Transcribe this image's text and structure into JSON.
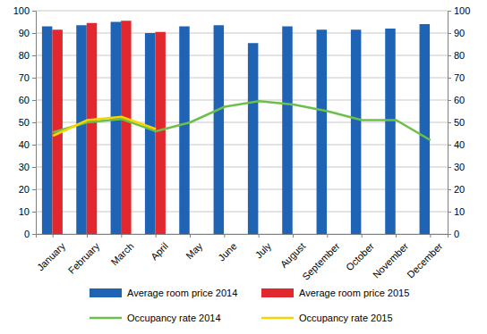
{
  "chart_data": {
    "type": "bar",
    "categories": [
      "January",
      "February",
      "March",
      "April",
      "May",
      "June",
      "July",
      "August",
      "September",
      "October",
      "November",
      "December"
    ],
    "series": [
      {
        "name": "Average room price 2014",
        "type": "bar",
        "color": "#1f64b4",
        "values": [
          93,
          93.5,
          95,
          90,
          93,
          93.5,
          85.5,
          93,
          91.5,
          91.5,
          92,
          94
        ]
      },
      {
        "name": "Average room price 2015",
        "type": "bar",
        "color": "#e0282e",
        "values": [
          91.5,
          94.5,
          95.5,
          90.5,
          null,
          null,
          null,
          null,
          null,
          null,
          null,
          null
        ]
      },
      {
        "name": "Occupancy rate 2014",
        "type": "line",
        "color": "#6cc04a",
        "axis": "y2",
        "values": [
          45.5,
          50,
          51.5,
          46,
          50,
          57,
          59.5,
          58,
          55,
          51,
          51,
          42
        ]
      },
      {
        "name": "Occupancy rate 2015",
        "type": "line",
        "color": "#f7d600",
        "axis": "y2",
        "values": [
          44,
          51,
          52.5,
          47,
          null,
          null,
          null,
          null,
          null,
          null,
          null,
          null
        ]
      }
    ],
    "ylim": [
      0,
      100
    ],
    "yticks": [
      0,
      10,
      20,
      30,
      40,
      50,
      60,
      70,
      80,
      90,
      100
    ],
    "y2lim": [
      0,
      100
    ],
    "y2ticks": [
      0,
      10,
      20,
      30,
      40,
      50,
      60,
      70,
      80,
      90,
      100
    ],
    "grid": true,
    "legend": "bottom"
  }
}
